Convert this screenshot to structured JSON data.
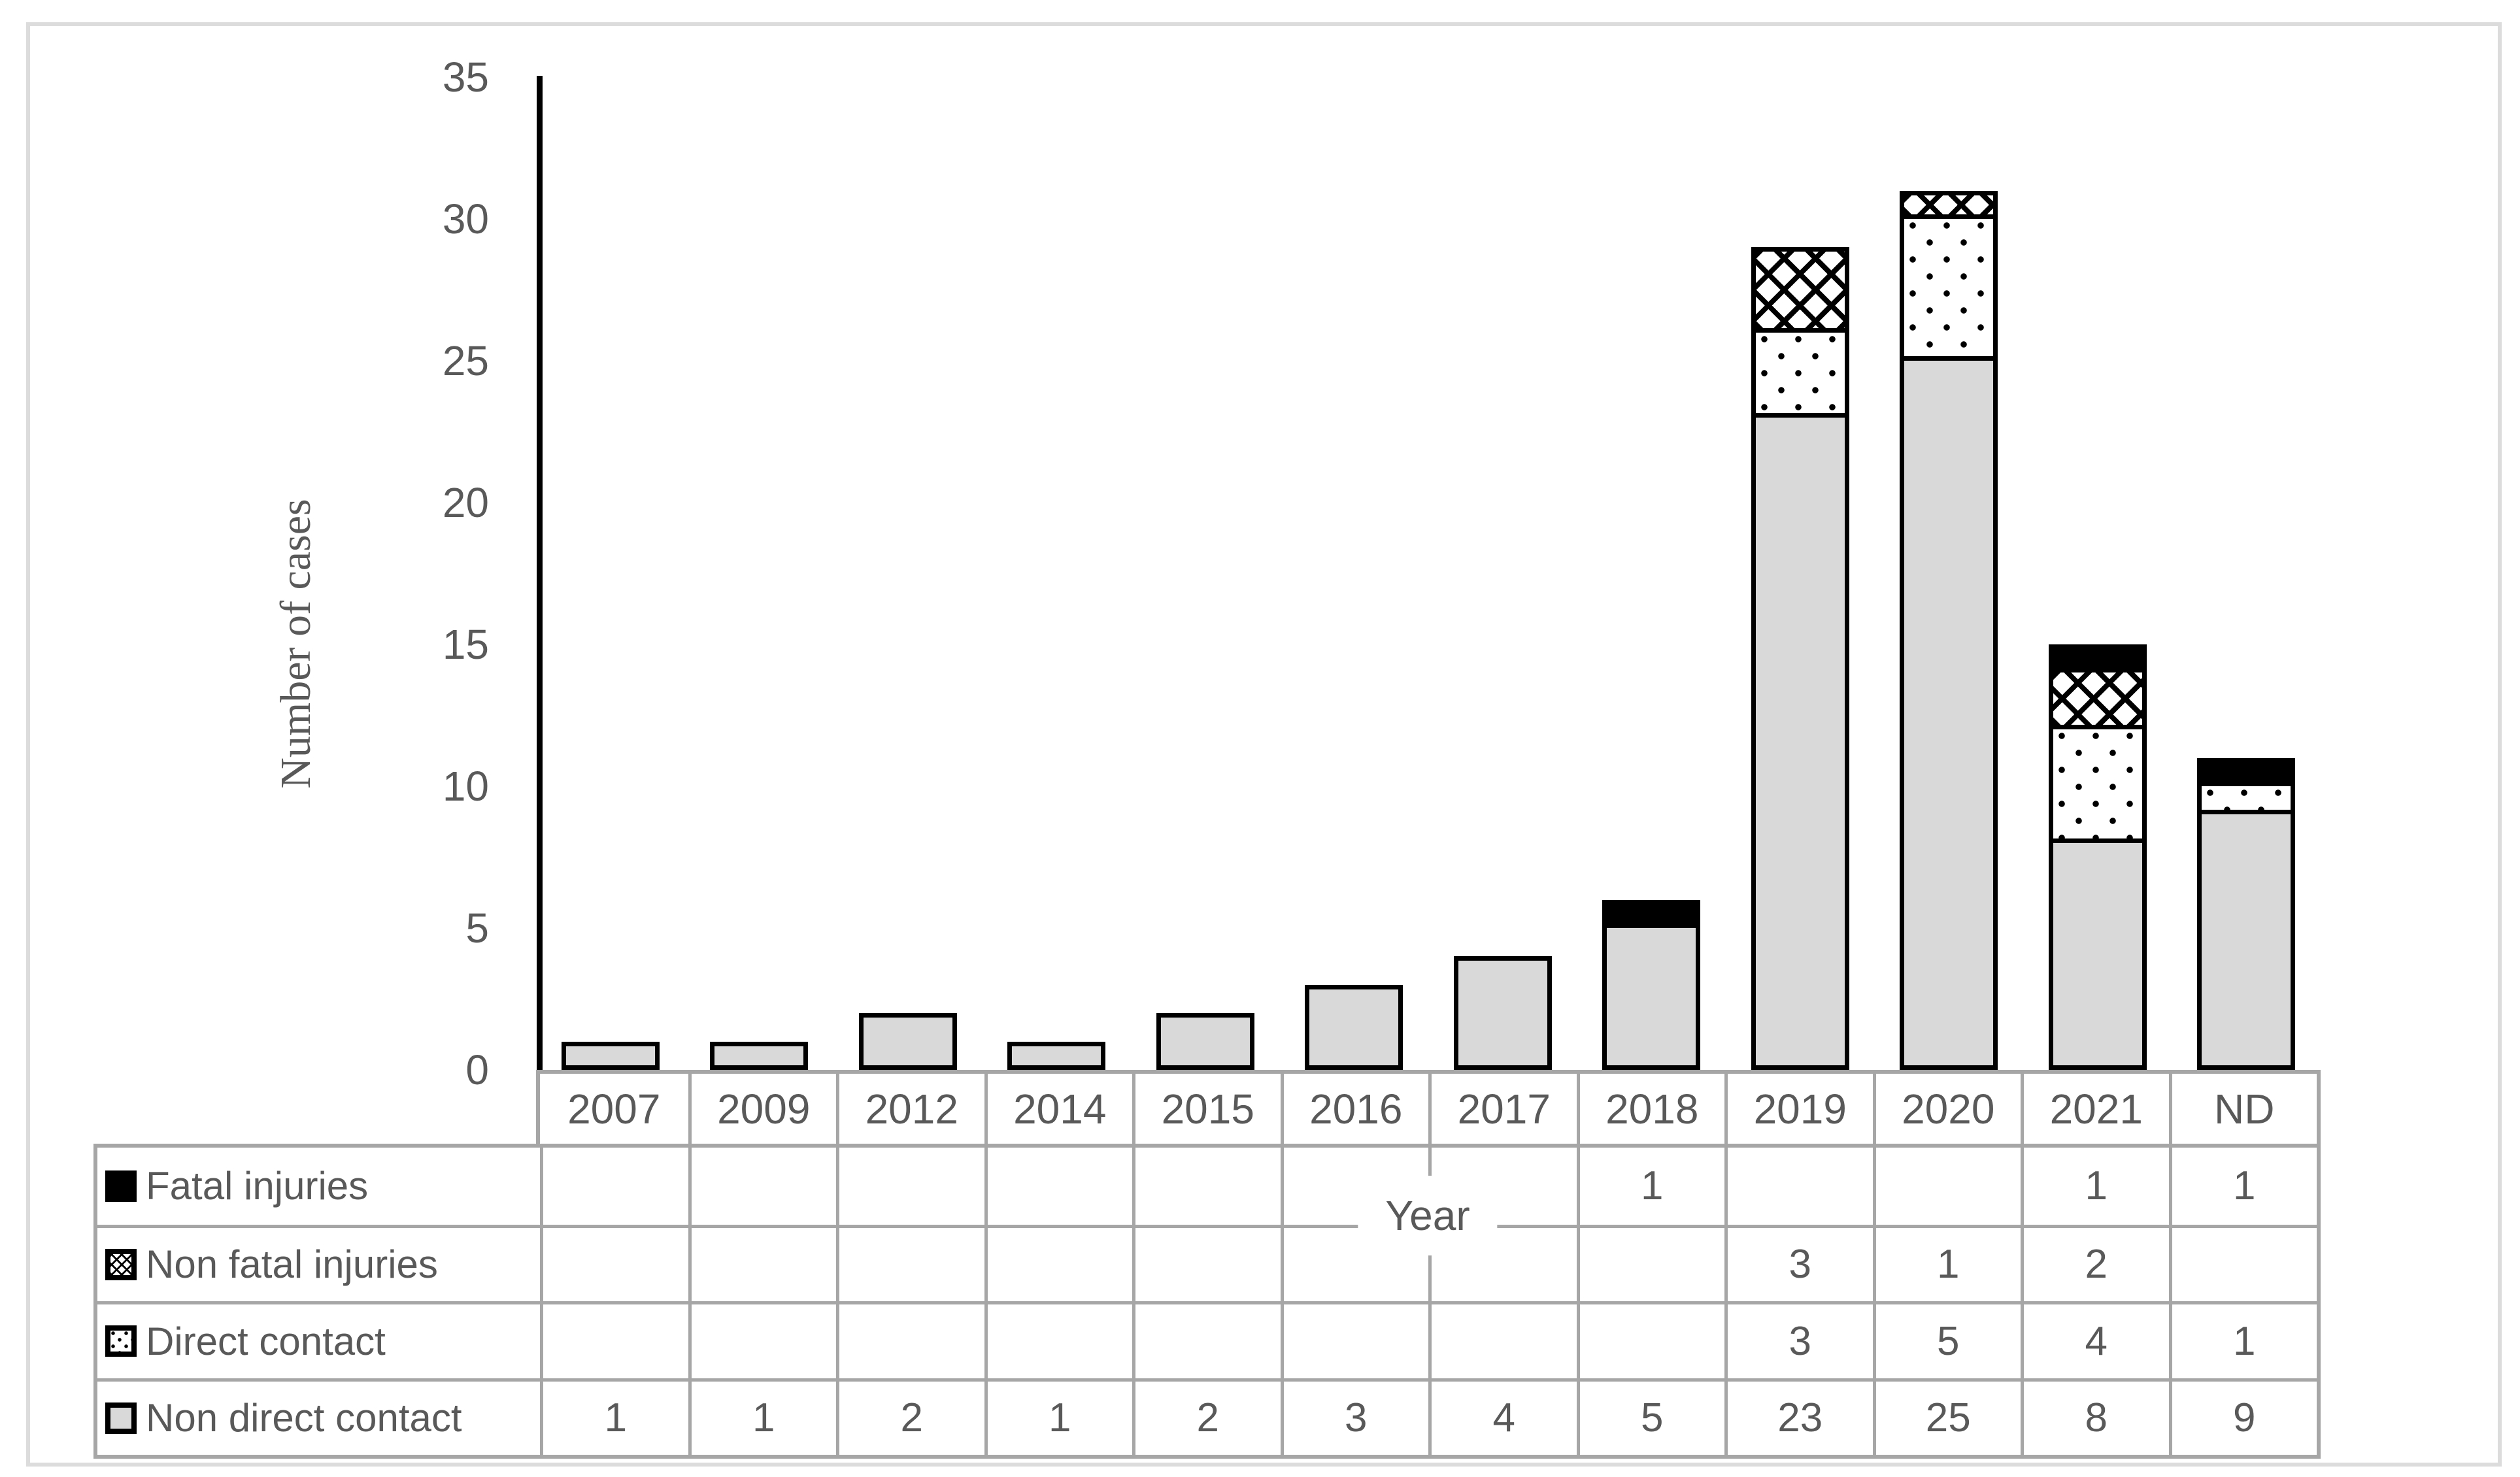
{
  "chart_data": {
    "type": "bar",
    "stacked": true,
    "title": "",
    "xlabel": "Year",
    "ylabel": "Number of cases",
    "ylim": [
      0,
      35
    ],
    "yticks": [
      0,
      5,
      10,
      15,
      20,
      25,
      30,
      35
    ],
    "grid": false,
    "legend_position": "table-left",
    "categories": [
      "2007",
      "2009",
      "2012",
      "2014",
      "2015",
      "2016",
      "2017",
      "2018",
      "2019",
      "2020",
      "2021",
      "ND"
    ],
    "series": [
      {
        "name": "Fatal injuries",
        "pattern": "solid-black",
        "values": [
          0,
          0,
          0,
          0,
          0,
          0,
          0,
          1,
          0,
          0,
          1,
          1
        ]
      },
      {
        "name": "Non fatal injuries",
        "pattern": "crosshatch",
        "values": [
          0,
          0,
          0,
          0,
          0,
          0,
          0,
          0,
          3,
          1,
          2,
          0
        ]
      },
      {
        "name": "Direct contact",
        "pattern": "dots",
        "values": [
          0,
          0,
          0,
          0,
          0,
          0,
          0,
          0,
          3,
          5,
          4,
          1
        ]
      },
      {
        "name": "Non direct contact",
        "pattern": "solid-gray",
        "values": [
          1,
          1,
          2,
          1,
          2,
          3,
          4,
          5,
          23,
          25,
          8,
          9
        ]
      }
    ]
  },
  "colors": {
    "text": "#595959",
    "table_grid": "#a6a6a6",
    "bar_fill_gray": "#d9d9d9",
    "bar_border": "#000000",
    "figure_frame": "#dcdcdc"
  }
}
